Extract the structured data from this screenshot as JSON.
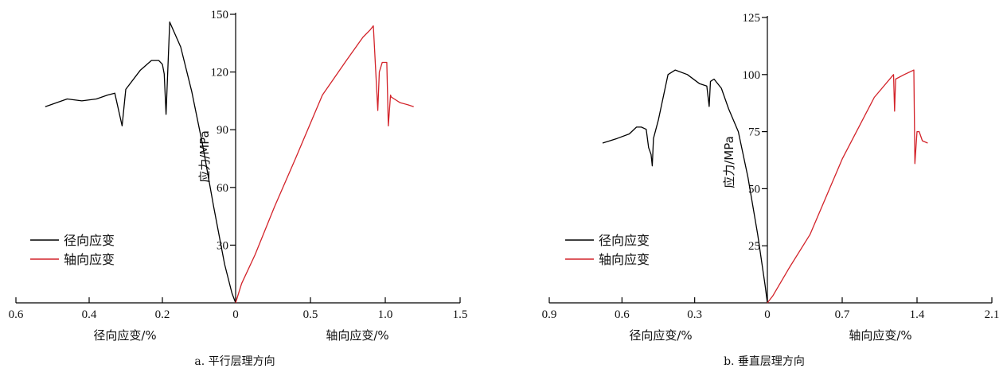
{
  "chart_data": [
    {
      "type": "line",
      "caption": "a. 平行层理方向",
      "ylabel": "应力/MPa",
      "xlabel_left": "径向应变/%",
      "xlabel_right": "轴向应变/%",
      "y_ticks": [
        30,
        60,
        90,
        120,
        150
      ],
      "ylim": [
        0,
        150
      ],
      "left_ticks": [
        0.6,
        0.4,
        0.2,
        0
      ],
      "right_ticks": [
        0.5,
        1.0,
        1.5
      ],
      "left_tick_labels": [
        "0.6",
        "0.4",
        "0.2",
        "0"
      ],
      "right_tick_labels": [
        "0.5",
        "1.0",
        "1.5"
      ],
      "left_range": [
        0.6,
        0
      ],
      "right_range": [
        0,
        1.5
      ],
      "legend": [
        "径向应变",
        "轴向应变"
      ],
      "series": [
        {
          "name": "径向应变",
          "color": "#000000",
          "x": [
            0.52,
            0.46,
            0.42,
            0.38,
            0.35,
            0.33,
            0.31,
            0.3,
            0.26,
            0.23,
            0.21,
            0.2,
            0.195,
            0.19,
            0.18,
            0.15,
            0.12,
            0.09,
            0.06,
            0.03,
            0.01,
            0
          ],
          "y": [
            102,
            106,
            105,
            106,
            108,
            109,
            92,
            111,
            121,
            126,
            126,
            124,
            119,
            98,
            146,
            133,
            110,
            82,
            50,
            20,
            5,
            0
          ]
        },
        {
          "name": "轴向应变",
          "color": "#d3232a",
          "x": [
            0,
            0.04,
            0.13,
            0.26,
            0.4,
            0.58,
            0.74,
            0.85,
            0.9,
            0.92,
            0.95,
            0.96,
            0.98,
            1.01,
            1.02,
            1.035,
            1.04,
            1.06,
            1.1,
            1.15,
            1.19
          ],
          "y": [
            0,
            10,
            25,
            50,
            75,
            108,
            126,
            138,
            142,
            144,
            100,
            120,
            125,
            125,
            92,
            108,
            107,
            106,
            104,
            103,
            102
          ]
        }
      ]
    },
    {
      "type": "line",
      "caption": "b. 垂直层理方向",
      "ylabel": "应力/MPa",
      "xlabel_left": "径向应变/%",
      "xlabel_right": "轴向应变/%",
      "y_ticks": [
        25,
        50,
        75,
        100,
        125
      ],
      "ylim": [
        0,
        125
      ],
      "left_ticks": [
        0.9,
        0.6,
        0.3,
        0
      ],
      "right_ticks": [
        0.7,
        1.4,
        2.1
      ],
      "left_tick_labels": [
        "0.9",
        "0.6",
        "0.3",
        "0"
      ],
      "right_tick_labels": [
        "0.7",
        "1.4",
        "2.1"
      ],
      "left_range": [
        0.9,
        0
      ],
      "right_range": [
        0,
        2.1
      ],
      "legend": [
        "径向应变",
        "轴向应变"
      ],
      "series": [
        {
          "name": "径向应变",
          "color": "#000000",
          "x": [
            0.68,
            0.62,
            0.57,
            0.54,
            0.52,
            0.5,
            0.49,
            0.48,
            0.475,
            0.47,
            0.45,
            0.43,
            0.41,
            0.38,
            0.33,
            0.28,
            0.25,
            0.24,
            0.235,
            0.22,
            0.19,
            0.16,
            0.12,
            0.08,
            0.04,
            0.01,
            0
          ],
          "y": [
            70,
            72,
            74,
            77,
            77,
            76,
            68,
            65,
            60,
            72,
            80,
            90,
            100,
            102,
            100,
            96,
            95,
            86,
            97,
            98,
            94,
            85,
            75,
            55,
            30,
            8,
            0
          ]
        },
        {
          "name": "轴向应变",
          "color": "#d3232a",
          "x": [
            0,
            0.05,
            0.2,
            0.4,
            0.7,
            1.0,
            1.18,
            1.19,
            1.2,
            1.28,
            1.37,
            1.38,
            1.4,
            1.42,
            1.45,
            1.5
          ],
          "y": [
            0,
            3,
            15,
            30,
            63,
            90,
            100,
            84,
            98,
            100,
            102,
            61,
            75,
            75,
            71,
            70
          ]
        }
      ]
    }
  ]
}
